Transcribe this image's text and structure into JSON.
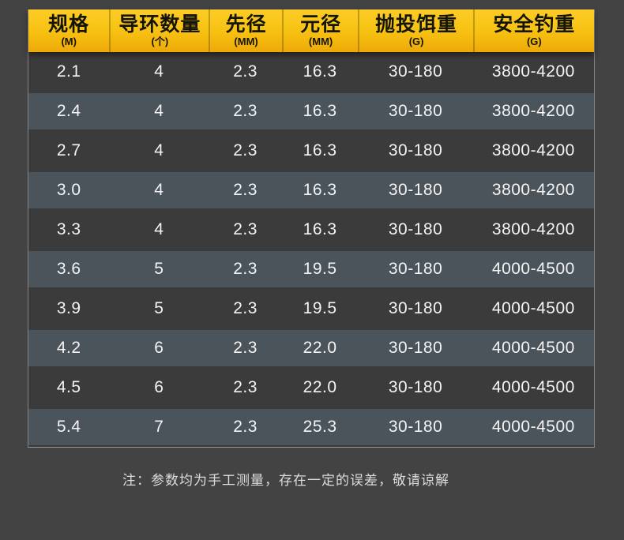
{
  "table": {
    "columns": [
      {
        "label": "规格",
        "unit": "(M)"
      },
      {
        "label": "导环数量",
        "unit": "(个)"
      },
      {
        "label": "先径",
        "unit": "(MM)"
      },
      {
        "label": "元径",
        "unit": "(MM)"
      },
      {
        "label": "抛投饵重",
        "unit": "(G)"
      },
      {
        "label": "安全钓重",
        "unit": "(G)"
      }
    ],
    "rows": [
      [
        "2.1",
        "4",
        "2.3",
        "16.3",
        "30-180",
        "3800-4200"
      ],
      [
        "2.4",
        "4",
        "2.3",
        "16.3",
        "30-180",
        "3800-4200"
      ],
      [
        "2.7",
        "4",
        "2.3",
        "16.3",
        "30-180",
        "3800-4200"
      ],
      [
        "3.0",
        "4",
        "2.3",
        "16.3",
        "30-180",
        "3800-4200"
      ],
      [
        "3.3",
        "4",
        "2.3",
        "16.3",
        "30-180",
        "3800-4200"
      ],
      [
        "3.6",
        "5",
        "2.3",
        "19.5",
        "30-180",
        "4000-4500"
      ],
      [
        "3.9",
        "5",
        "2.3",
        "19.5",
        "30-180",
        "4000-4500"
      ],
      [
        "4.2",
        "6",
        "2.3",
        "22.0",
        "30-180",
        "4000-4500"
      ],
      [
        "4.5",
        "6",
        "2.3",
        "22.0",
        "30-180",
        "4000-4500"
      ],
      [
        "5.4",
        "7",
        "2.3",
        "25.3",
        "30-180",
        "4000-4500"
      ]
    ]
  },
  "note": "注：参数均为手工测量，存在一定的误差，敬请谅解",
  "colors": {
    "background": "#434343",
    "header_yellow_top": "#fccd27",
    "header_yellow_bottom": "#eda908",
    "header_text": "#151505",
    "row_dark": "#3b3b3c",
    "row_light": "#4b535b",
    "cell_text": "#f4f4f4",
    "note_text": "#dcdcdc",
    "table_border": "#848484"
  },
  "chart_data": {
    "type": "table",
    "title": "",
    "columns": [
      "规格 (M)",
      "导环数量 (个)",
      "先径 (MM)",
      "元径 (MM)",
      "抛投饵重 (G)",
      "安全钓重 (G)"
    ],
    "rows": [
      [
        "2.1",
        "4",
        "2.3",
        "16.3",
        "30-180",
        "3800-4200"
      ],
      [
        "2.4",
        "4",
        "2.3",
        "16.3",
        "30-180",
        "3800-4200"
      ],
      [
        "2.7",
        "4",
        "2.3",
        "16.3",
        "30-180",
        "3800-4200"
      ],
      [
        "3.0",
        "4",
        "2.3",
        "16.3",
        "30-180",
        "3800-4200"
      ],
      [
        "3.3",
        "4",
        "2.3",
        "16.3",
        "30-180",
        "3800-4200"
      ],
      [
        "3.6",
        "5",
        "2.3",
        "19.5",
        "30-180",
        "4000-4500"
      ],
      [
        "3.9",
        "5",
        "2.3",
        "19.5",
        "30-180",
        "4000-4500"
      ],
      [
        "4.2",
        "6",
        "2.3",
        "22.0",
        "30-180",
        "4000-4500"
      ],
      [
        "4.5",
        "6",
        "2.3",
        "22.0",
        "30-180",
        "4000-4500"
      ],
      [
        "5.4",
        "7",
        "2.3",
        "25.3",
        "30-180",
        "4000-4500"
      ]
    ],
    "footnote": "注：参数均为手工测量，存在一定的误差，敬请谅解",
    "layout": {
      "header_style": "yellow-gradient",
      "row_striping": "dark/slate alternating"
    }
  }
}
